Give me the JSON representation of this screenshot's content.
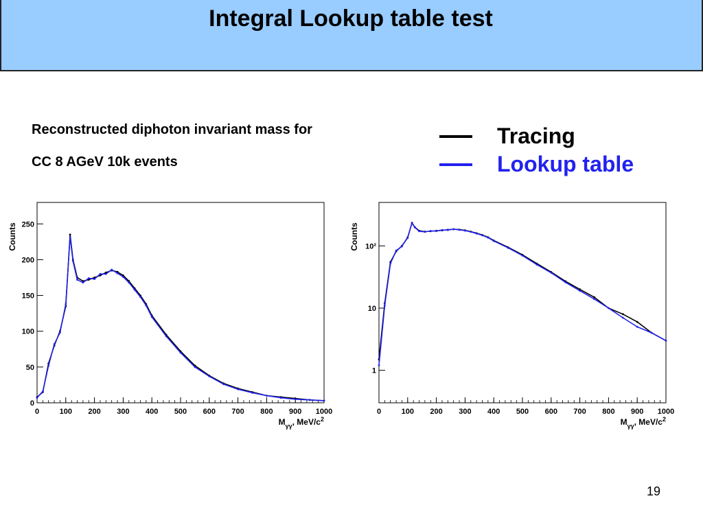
{
  "slide": {
    "title": "Integral Lookup table test",
    "description_line1": "Reconstructed diphoton invariant mass for",
    "description_line2": "CC 8 AGeV 10k events",
    "page_number": "19"
  },
  "legend": [
    {
      "label": "Tracing",
      "color": "#000000"
    },
    {
      "label": "Lookup table",
      "color": "#2222ee"
    }
  ],
  "chart_data": [
    {
      "type": "line",
      "scale": "linear",
      "xlabel": "M",
      "xlabel_sub": "γγ",
      "xlabel_unit": ", MeV/c",
      "xlabel_sup": "2",
      "ylabel": "Counts",
      "xlim": [
        0,
        1000
      ],
      "ylim": [
        0,
        280
      ],
      "x_ticks": [
        0,
        100,
        200,
        300,
        400,
        500,
        600,
        700,
        800,
        900,
        1000
      ],
      "y_ticks": [
        0,
        50,
        100,
        150,
        200,
        250
      ],
      "y_tick_labels": [
        "0",
        "50",
        "100",
        "150",
        "200",
        "250"
      ],
      "x": [
        0,
        20,
        40,
        60,
        80,
        100,
        115,
        125,
        140,
        160,
        180,
        200,
        220,
        240,
        260,
        280,
        300,
        320,
        340,
        360,
        380,
        400,
        450,
        500,
        550,
        600,
        650,
        700,
        750,
        800,
        850,
        900,
        950,
        1000
      ],
      "series": [
        {
          "name": "Tracing",
          "color": "#000000",
          "values": [
            8,
            15,
            55,
            80,
            100,
            135,
            235,
            200,
            175,
            170,
            172,
            175,
            178,
            182,
            185,
            183,
            178,
            170,
            160,
            150,
            138,
            122,
            95,
            72,
            52,
            38,
            27,
            20,
            15,
            10,
            8,
            6,
            4,
            3
          ]
        },
        {
          "name": "Lookup table",
          "color": "#2222ee",
          "values": [
            7,
            16,
            52,
            82,
            98,
            138,
            232,
            198,
            172,
            168,
            174,
            173,
            180,
            180,
            186,
            181,
            176,
            168,
            158,
            148,
            136,
            120,
            93,
            70,
            50,
            37,
            26,
            19,
            14,
            10,
            7,
            5,
            4,
            3
          ]
        }
      ]
    },
    {
      "type": "line",
      "scale": "log",
      "xlabel": "M",
      "xlabel_sub": "γγ",
      "xlabel_unit": ", MeV/c",
      "xlabel_sup": "2",
      "ylabel": "Counts",
      "xlim": [
        0,
        1000
      ],
      "ylim": [
        0.3,
        500
      ],
      "x_ticks": [
        0,
        100,
        200,
        300,
        400,
        500,
        600,
        700,
        800,
        900,
        1000
      ],
      "y_ticks": [
        1,
        10,
        100
      ],
      "y_tick_labels": [
        "1",
        "10",
        "10²"
      ],
      "x": [
        0,
        20,
        40,
        60,
        80,
        100,
        115,
        125,
        140,
        160,
        180,
        200,
        220,
        240,
        260,
        280,
        300,
        320,
        340,
        360,
        380,
        400,
        450,
        500,
        550,
        600,
        650,
        700,
        750,
        800,
        850,
        900,
        950,
        1000
      ],
      "series": [
        {
          "name": "Tracing",
          "color": "#000000",
          "values": [
            1.5,
            12,
            55,
            82,
            100,
            135,
            235,
            200,
            175,
            170,
            172,
            175,
            178,
            182,
            185,
            183,
            178,
            170,
            160,
            150,
            138,
            122,
            95,
            72,
            52,
            38,
            27,
            20,
            15,
            10,
            8,
            6,
            4,
            3
          ]
        },
        {
          "name": "Lookup table",
          "color": "#2222ee",
          "values": [
            1.2,
            11,
            52,
            84,
            98,
            138,
            232,
            198,
            172,
            168,
            174,
            173,
            180,
            180,
            186,
            181,
            176,
            168,
            158,
            148,
            136,
            120,
            93,
            70,
            50,
            37,
            26,
            19,
            14,
            10,
            7,
            5,
            4,
            3
          ]
        }
      ]
    }
  ]
}
